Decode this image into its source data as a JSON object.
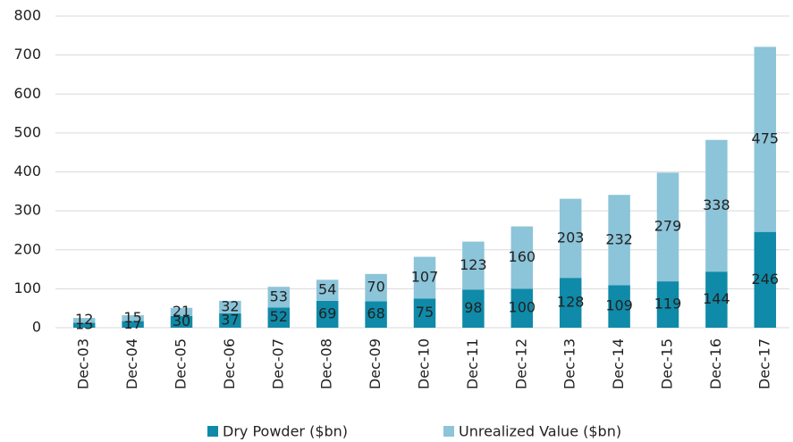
{
  "chart_data": {
    "type": "stacked_bar",
    "categories": [
      "Dec-03",
      "Dec-04",
      "Dec-05",
      "Dec-06",
      "Dec-07",
      "Dec-08",
      "Dec-09",
      "Dec-10",
      "Dec-11",
      "Dec-12",
      "Dec-13",
      "Dec-14",
      "Dec-15",
      "Dec-16",
      "Dec-17"
    ],
    "series": [
      {
        "name": "Dry Powder ($bn)",
        "color": "#0f8aa8",
        "values": [
          13,
          17,
          30,
          37,
          52,
          69,
          68,
          75,
          98,
          100,
          128,
          109,
          119,
          144,
          246
        ]
      },
      {
        "name": "Unrealized Value ($bn)",
        "color": "#8cc4d9",
        "values": [
          12,
          15,
          21,
          32,
          53,
          54,
          70,
          107,
          123,
          160,
          203,
          232,
          279,
          338,
          475
        ]
      }
    ],
    "ylim": [
      0,
      800
    ],
    "yticks": [
      0,
      100,
      200,
      300,
      400,
      500,
      600,
      700,
      800
    ],
    "grid": true,
    "legend": "bottom"
  }
}
